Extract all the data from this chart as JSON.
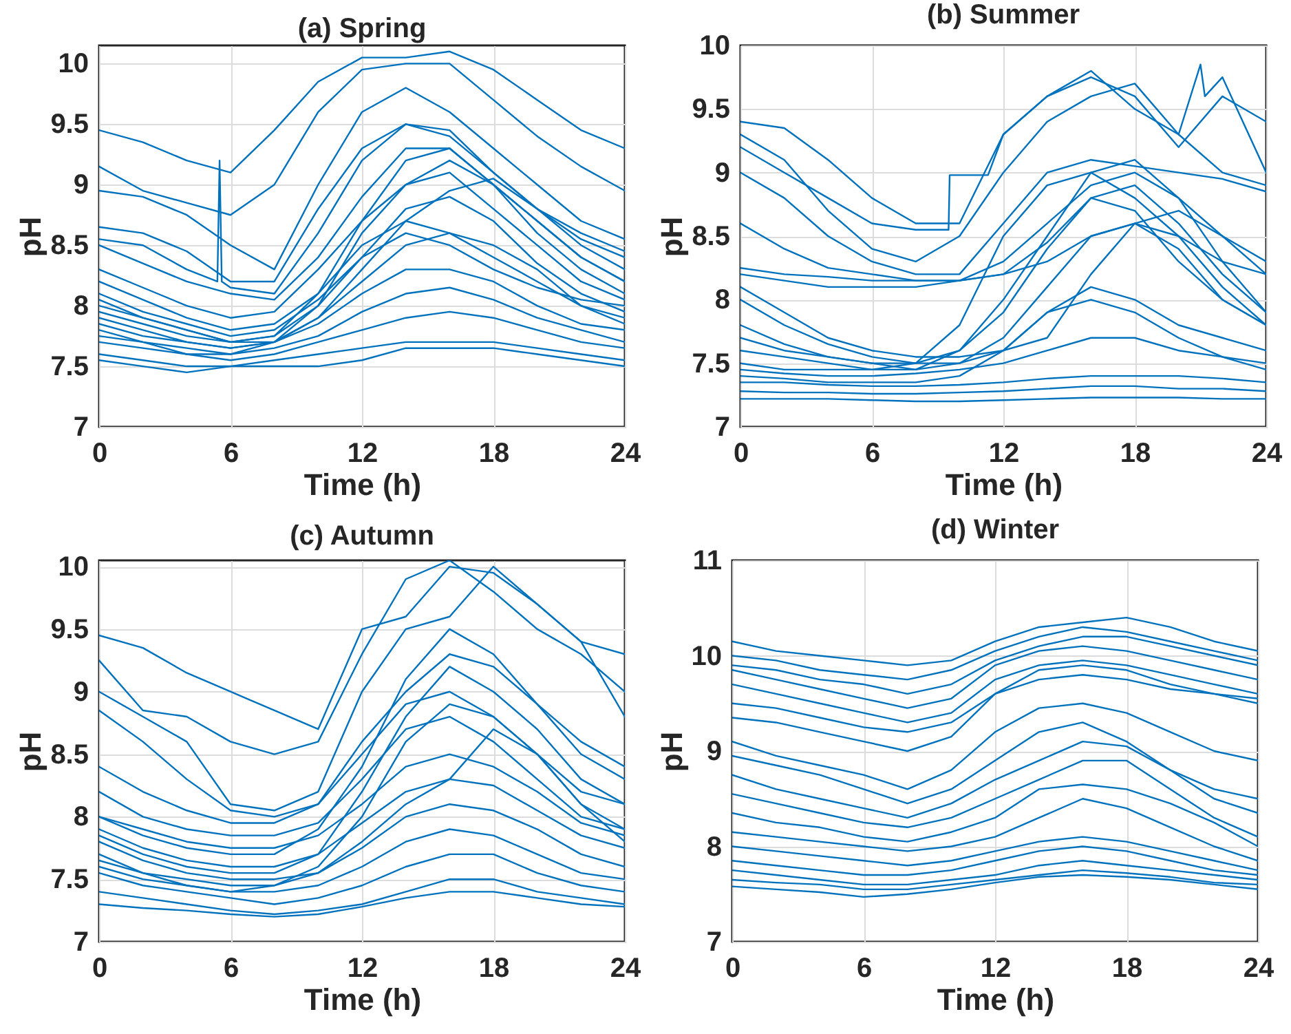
{
  "chart_data": [
    {
      "type": "line",
      "title": "(a) Spring",
      "xlabel": "Time (h)",
      "ylabel": "pH",
      "xlim": [
        0,
        24
      ],
      "xticks": [
        0,
        6,
        12,
        18,
        24
      ],
      "ylim": [
        7,
        10.15
      ],
      "yticks": [
        7,
        7.5,
        8,
        8.5,
        9,
        9.5,
        10
      ],
      "grid": true,
      "x": [
        0,
        2,
        4,
        6,
        8,
        10,
        12,
        14,
        16,
        18,
        20,
        22,
        24
      ],
      "series": [
        {
          "color": "#0072bd",
          "values": [
            9.45,
            9.35,
            9.2,
            9.1,
            9.45,
            9.85,
            10.05,
            10.05,
            10.1,
            9.95,
            9.7,
            9.45,
            9.3
          ]
        },
        {
          "color": "#0072bd",
          "values": [
            9.15,
            8.95,
            8.85,
            8.75,
            9.0,
            9.6,
            9.95,
            10.0,
            10.0,
            9.7,
            9.4,
            9.15,
            8.95
          ]
        },
        {
          "color": "#0072bd",
          "values": [
            8.95,
            8.9,
            8.75,
            8.5,
            8.3,
            9.0,
            9.6,
            9.8,
            9.6,
            9.3,
            9.0,
            8.7,
            8.55
          ]
        },
        {
          "color": "#0072bd",
          "values": [
            8.65,
            8.6,
            8.45,
            8.2,
            8.2,
            8.8,
            9.3,
            9.5,
            9.45,
            9.1,
            8.8,
            8.6,
            8.45
          ]
        },
        {
          "color": "#0072bd",
          "values": [
            8.5,
            8.35,
            8.2,
            8.1,
            8.05,
            8.4,
            8.9,
            9.3,
            9.3,
            9.0,
            8.7,
            8.4,
            8.2
          ]
        },
        {
          "color": "#0072bd",
          "values": [
            8.3,
            8.15,
            8.0,
            7.9,
            7.95,
            8.3,
            8.7,
            9.0,
            9.1,
            8.8,
            8.5,
            8.2,
            8.05
          ]
        },
        {
          "color": "#0072bd",
          "values": [
            8.2,
            8.05,
            7.9,
            7.8,
            7.85,
            8.1,
            8.5,
            8.7,
            8.6,
            8.4,
            8.2,
            8.0,
            7.9
          ]
        },
        {
          "color": "#0072bd",
          "values": [
            8.1,
            7.95,
            7.85,
            7.75,
            7.8,
            8.05,
            8.4,
            8.8,
            8.9,
            8.7,
            8.35,
            8.1,
            7.95
          ]
        },
        {
          "color": "#0072bd",
          "values": [
            8.0,
            7.9,
            7.8,
            7.7,
            7.7,
            7.9,
            8.2,
            8.5,
            8.6,
            8.5,
            8.3,
            8.0,
            7.85
          ]
        },
        {
          "color": "#0072bd",
          "values": [
            7.9,
            7.8,
            7.7,
            7.65,
            7.7,
            7.85,
            8.1,
            8.3,
            8.3,
            8.2,
            8.0,
            7.85,
            7.8
          ]
        },
        {
          "color": "#0072bd",
          "values": [
            7.8,
            7.7,
            7.65,
            7.6,
            7.65,
            7.75,
            7.95,
            8.1,
            8.15,
            8.05,
            7.9,
            7.8,
            7.7
          ]
        },
        {
          "color": "#0072bd",
          "values": [
            7.7,
            7.65,
            7.6,
            7.55,
            7.6,
            7.7,
            7.8,
            7.9,
            7.95,
            7.9,
            7.8,
            7.7,
            7.65
          ]
        },
        {
          "color": "#0072bd",
          "values": [
            7.6,
            7.55,
            7.5,
            7.5,
            7.55,
            7.6,
            7.65,
            7.7,
            7.7,
            7.7,
            7.65,
            7.6,
            7.55
          ]
        },
        {
          "color": "#0072bd",
          "values": [
            7.55,
            7.5,
            7.45,
            7.5,
            7.5,
            7.5,
            7.55,
            7.65,
            7.65,
            7.65,
            7.6,
            7.55,
            7.5
          ]
        },
        {
          "color": "#0072bd",
          "values": [
            7.95,
            7.85,
            7.75,
            7.7,
            7.75,
            8.1,
            8.7,
            9.2,
            9.3,
            9.0,
            8.6,
            8.3,
            8.1
          ]
        },
        {
          "color": "#0072bd",
          "values": [
            7.75,
            7.7,
            7.6,
            7.6,
            7.7,
            8.0,
            8.6,
            9.0,
            9.2,
            9.0,
            8.7,
            8.4,
            8.2
          ]
        },
        {
          "color": "#0072bd",
          "values": [
            7.85,
            7.75,
            7.7,
            7.65,
            7.7,
            7.9,
            8.3,
            8.7,
            8.95,
            9.05,
            8.8,
            8.5,
            8.3
          ]
        },
        {
          "color": "#0072bd",
          "values": [
            8.05,
            7.9,
            7.8,
            7.7,
            7.75,
            8.0,
            8.4,
            8.6,
            8.5,
            8.3,
            8.15,
            8.05,
            8.0
          ]
        },
        {
          "color": "#0072bd",
          "x": [
            0,
            2,
            4,
            5.4,
            5.5,
            5.6,
            6,
            8,
            10,
            12,
            14,
            16,
            18,
            20,
            22,
            24
          ],
          "values": [
            8.55,
            8.5,
            8.3,
            8.2,
            9.2,
            8.2,
            8.15,
            8.1,
            8.6,
            9.2,
            9.5,
            9.4,
            9.1,
            8.8,
            8.55,
            8.4
          ]
        }
      ]
    },
    {
      "type": "line",
      "title": "(b) Summer",
      "xlabel": "Time (h)",
      "ylabel": "pH",
      "xlim": [
        0,
        24
      ],
      "xticks": [
        0,
        6,
        12,
        18,
        24
      ],
      "ylim": [
        7,
        10
      ],
      "yticks": [
        7,
        7.5,
        8,
        8.5,
        9,
        9.5,
        10
      ],
      "grid": true,
      "x": [
        0,
        2,
        4,
        6,
        8,
        10,
        12,
        14,
        16,
        18,
        20,
        22,
        24
      ],
      "series": [
        {
          "color": "#0072bd",
          "values": [
            9.4,
            9.35,
            9.1,
            8.8,
            8.6,
            8.6,
            9.3,
            9.6,
            9.75,
            9.6,
            9.2,
            9.6,
            9.4
          ]
        },
        {
          "color": "#0072bd",
          "x": [
            0,
            2,
            4,
            6,
            8,
            9.5,
            9.55,
            11.3,
            12,
            14,
            16,
            18,
            20,
            21,
            21.2,
            22,
            24
          ],
          "values": [
            9.2,
            9.0,
            8.8,
            8.6,
            8.55,
            8.55,
            8.98,
            8.98,
            9.3,
            9.6,
            9.8,
            9.5,
            9.3,
            9.85,
            9.6,
            9.75,
            9.0
          ]
        },
        {
          "color": "#0072bd",
          "values": [
            9.3,
            9.1,
            8.7,
            8.4,
            8.3,
            8.5,
            9.0,
            9.4,
            9.6,
            9.7,
            9.3,
            9.0,
            8.9
          ]
        },
        {
          "color": "#0072bd",
          "values": [
            9.0,
            8.8,
            8.5,
            8.3,
            8.2,
            8.2,
            8.6,
            9.0,
            9.1,
            9.05,
            9.0,
            8.95,
            8.85
          ]
        },
        {
          "color": "#0072bd",
          "values": [
            8.6,
            8.4,
            8.25,
            8.2,
            8.15,
            8.15,
            8.3,
            8.6,
            8.9,
            9.0,
            8.8,
            8.5,
            8.3
          ]
        },
        {
          "color": "#0072bd",
          "values": [
            8.25,
            8.2,
            8.18,
            8.15,
            8.15,
            8.15,
            8.2,
            8.3,
            8.5,
            8.6,
            8.5,
            8.3,
            8.2
          ]
        },
        {
          "color": "#0072bd",
          "values": [
            8.2,
            8.15,
            8.1,
            8.1,
            8.1,
            8.15,
            8.2,
            8.45,
            8.8,
            8.9,
            8.6,
            8.2,
            7.9
          ]
        },
        {
          "color": "#0072bd",
          "values": [
            8.0,
            7.8,
            7.65,
            7.55,
            7.5,
            7.6,
            7.9,
            8.4,
            8.8,
            8.7,
            8.3,
            8.0,
            7.8
          ]
        },
        {
          "color": "#0072bd",
          "values": [
            7.8,
            7.65,
            7.55,
            7.5,
            7.45,
            7.5,
            7.7,
            8.1,
            8.5,
            8.6,
            8.4,
            8.0,
            7.8
          ]
        },
        {
          "color": "#0072bd",
          "values": [
            7.6,
            7.55,
            7.5,
            7.45,
            7.45,
            7.6,
            8.0,
            8.5,
            9.0,
            9.1,
            8.8,
            8.3,
            7.9
          ]
        },
        {
          "color": "#0072bd",
          "values": [
            7.5,
            7.45,
            7.45,
            7.45,
            7.5,
            7.5,
            7.6,
            7.9,
            8.1,
            8.0,
            7.8,
            7.7,
            7.6
          ]
        },
        {
          "color": "#0072bd",
          "values": [
            7.45,
            7.42,
            7.4,
            7.4,
            7.42,
            7.45,
            7.5,
            7.6,
            7.7,
            7.7,
            7.6,
            7.55,
            7.5
          ]
        },
        {
          "color": "#0072bd",
          "values": [
            7.35,
            7.35,
            7.33,
            7.32,
            7.32,
            7.33,
            7.35,
            7.38,
            7.4,
            7.4,
            7.4,
            7.38,
            7.35
          ]
        },
        {
          "color": "#0072bd",
          "values": [
            7.28,
            7.27,
            7.27,
            7.26,
            7.26,
            7.27,
            7.28,
            7.3,
            7.32,
            7.32,
            7.3,
            7.3,
            7.28
          ]
        },
        {
          "color": "#0072bd",
          "values": [
            7.22,
            7.22,
            7.22,
            7.21,
            7.2,
            7.2,
            7.21,
            7.22,
            7.23,
            7.23,
            7.23,
            7.22,
            7.22
          ]
        },
        {
          "color": "#0072bd",
          "values": [
            7.7,
            7.6,
            7.55,
            7.5,
            7.5,
            7.8,
            8.5,
            8.9,
            9.0,
            8.8,
            8.5,
            8.1,
            7.8
          ]
        },
        {
          "color": "#0072bd",
          "values": [
            8.1,
            7.9,
            7.7,
            7.6,
            7.55,
            7.55,
            7.6,
            7.7,
            8.2,
            8.6,
            8.7,
            8.5,
            8.2
          ]
        },
        {
          "color": "#0072bd",
          "values": [
            7.4,
            7.38,
            7.35,
            7.35,
            7.35,
            7.4,
            7.6,
            7.9,
            8.0,
            7.9,
            7.7,
            7.55,
            7.45
          ]
        }
      ]
    },
    {
      "type": "line",
      "title": "(c) Autumn",
      "xlabel": "Time (h)",
      "ylabel": "pH",
      "xlim": [
        0,
        24
      ],
      "xticks": [
        0,
        6,
        12,
        18,
        24
      ],
      "ylim": [
        7,
        10.05
      ],
      "yticks": [
        7,
        7.5,
        8,
        8.5,
        9,
        9.5,
        10
      ],
      "grid": true,
      "x": [
        0,
        2,
        4,
        6,
        8,
        10,
        12,
        14,
        16,
        18,
        20,
        22,
        24
      ],
      "series": [
        {
          "color": "#0072bd",
          "values": [
            9.45,
            9.35,
            9.15,
            9.0,
            8.85,
            8.7,
            9.5,
            9.6,
            10.0,
            9.95,
            9.7,
            9.4,
            9.3
          ]
        },
        {
          "color": "#0072bd",
          "values": [
            9.25,
            8.85,
            8.8,
            8.6,
            8.5,
            8.6,
            9.3,
            9.9,
            10.05,
            9.8,
            9.5,
            9.3,
            9.0
          ]
        },
        {
          "color": "#0072bd",
          "values": [
            9.0,
            8.8,
            8.6,
            8.1,
            8.05,
            8.2,
            9.0,
            9.5,
            9.6,
            10.0,
            9.7,
            9.4,
            8.8
          ]
        },
        {
          "color": "#0072bd",
          "values": [
            8.85,
            8.6,
            8.3,
            8.05,
            8.0,
            8.1,
            8.6,
            9.0,
            9.3,
            9.2,
            8.9,
            8.5,
            8.3
          ]
        },
        {
          "color": "#0072bd",
          "values": [
            8.4,
            8.2,
            8.05,
            7.95,
            7.95,
            8.1,
            8.5,
            8.9,
            9.0,
            8.8,
            8.5,
            8.2,
            8.1
          ]
        },
        {
          "color": "#0072bd",
          "values": [
            8.2,
            8.0,
            7.9,
            7.85,
            7.85,
            7.95,
            8.3,
            8.7,
            8.8,
            8.6,
            8.3,
            8.0,
            7.9
          ]
        },
        {
          "color": "#0072bd",
          "values": [
            8.0,
            7.9,
            7.8,
            7.75,
            7.75,
            7.85,
            8.1,
            8.4,
            8.5,
            8.4,
            8.2,
            7.95,
            7.85
          ]
        },
        {
          "color": "#0072bd",
          "values": [
            7.9,
            7.75,
            7.65,
            7.6,
            7.6,
            7.7,
            7.95,
            8.2,
            8.3,
            8.25,
            8.05,
            7.85,
            7.75
          ]
        },
        {
          "color": "#0072bd",
          "values": [
            7.8,
            7.65,
            7.55,
            7.5,
            7.5,
            7.55,
            7.75,
            8.0,
            8.1,
            8.05,
            7.9,
            7.7,
            7.6
          ]
        },
        {
          "color": "#0072bd",
          "values": [
            7.7,
            7.55,
            7.45,
            7.4,
            7.4,
            7.45,
            7.6,
            7.8,
            7.9,
            7.85,
            7.7,
            7.55,
            7.5
          ]
        },
        {
          "color": "#0072bd",
          "values": [
            7.55,
            7.45,
            7.4,
            7.35,
            7.3,
            7.35,
            7.45,
            7.6,
            7.7,
            7.7,
            7.55,
            7.45,
            7.4
          ]
        },
        {
          "color": "#0072bd",
          "values": [
            7.4,
            7.35,
            7.3,
            7.25,
            7.22,
            7.25,
            7.3,
            7.4,
            7.5,
            7.5,
            7.4,
            7.35,
            7.3
          ]
        },
        {
          "color": "#0072bd",
          "values": [
            7.3,
            7.27,
            7.25,
            7.22,
            7.2,
            7.22,
            7.28,
            7.35,
            7.4,
            7.4,
            7.35,
            7.3,
            7.28
          ]
        },
        {
          "color": "#0072bd",
          "values": [
            7.6,
            7.5,
            7.45,
            7.4,
            7.45,
            7.6,
            8.0,
            8.6,
            8.9,
            8.8,
            8.5,
            8.1,
            7.9
          ]
        },
        {
          "color": "#0072bd",
          "values": [
            7.85,
            7.7,
            7.6,
            7.55,
            7.55,
            7.7,
            8.2,
            8.8,
            9.2,
            9.0,
            8.7,
            8.3,
            8.1
          ]
        },
        {
          "color": "#0072bd",
          "values": [
            8.0,
            7.85,
            7.75,
            7.7,
            7.7,
            7.9,
            8.4,
            9.1,
            9.5,
            9.3,
            8.9,
            8.6,
            8.4
          ]
        },
        {
          "color": "#0072bd",
          "values": [
            7.65,
            7.55,
            7.5,
            7.45,
            7.45,
            7.55,
            7.8,
            8.1,
            8.3,
            8.7,
            8.5,
            8.1,
            7.8
          ]
        }
      ]
    },
    {
      "type": "line",
      "title": "(d) Winter",
      "xlabel": "Time (h)",
      "ylabel": "pH",
      "xlim": [
        0,
        24
      ],
      "xticks": [
        0,
        6,
        12,
        18,
        24
      ],
      "ylim": [
        7,
        11
      ],
      "yticks": [
        7,
        8,
        9,
        10,
        11
      ],
      "grid": true,
      "x": [
        0,
        2,
        4,
        6,
        8,
        10,
        12,
        14,
        16,
        18,
        20,
        22,
        24
      ],
      "series": [
        {
          "color": "#0072bd",
          "values": [
            10.15,
            10.05,
            10.0,
            9.95,
            9.9,
            9.95,
            10.15,
            10.3,
            10.35,
            10.4,
            10.3,
            10.15,
            10.05
          ]
        },
        {
          "color": "#0072bd",
          "values": [
            10.0,
            9.95,
            9.85,
            9.8,
            9.75,
            9.85,
            10.05,
            10.2,
            10.3,
            10.25,
            10.15,
            10.05,
            9.95
          ]
        },
        {
          "color": "#0072bd",
          "values": [
            9.85,
            9.75,
            9.65,
            9.55,
            9.45,
            9.55,
            9.9,
            10.05,
            10.1,
            10.05,
            9.95,
            9.85,
            9.75
          ]
        },
        {
          "color": "#0072bd",
          "values": [
            9.7,
            9.6,
            9.5,
            9.4,
            9.3,
            9.4,
            9.75,
            9.9,
            9.95,
            9.9,
            9.8,
            9.7,
            9.6
          ]
        },
        {
          "color": "#0072bd",
          "values": [
            9.5,
            9.45,
            9.35,
            9.25,
            9.2,
            9.3,
            9.6,
            9.75,
            9.8,
            9.75,
            9.65,
            9.6,
            9.55
          ]
        },
        {
          "color": "#0072bd",
          "values": [
            9.1,
            8.95,
            8.85,
            8.75,
            8.6,
            8.8,
            9.2,
            9.45,
            9.5,
            9.4,
            9.2,
            9.0,
            8.9
          ]
        },
        {
          "color": "#0072bd",
          "values": [
            8.95,
            8.85,
            8.75,
            8.6,
            8.45,
            8.6,
            8.9,
            9.2,
            9.3,
            9.1,
            8.8,
            8.6,
            8.5
          ]
        },
        {
          "color": "#0072bd",
          "values": [
            8.75,
            8.6,
            8.5,
            8.4,
            8.3,
            8.45,
            8.7,
            8.9,
            9.1,
            9.05,
            8.8,
            8.5,
            8.35
          ]
        },
        {
          "color": "#0072bd",
          "values": [
            8.55,
            8.45,
            8.35,
            8.25,
            8.2,
            8.3,
            8.5,
            8.7,
            8.9,
            8.9,
            8.6,
            8.3,
            8.1
          ]
        },
        {
          "color": "#0072bd",
          "values": [
            8.35,
            8.25,
            8.2,
            8.1,
            8.05,
            8.15,
            8.3,
            8.6,
            8.65,
            8.6,
            8.45,
            8.25,
            8.0
          ]
        },
        {
          "color": "#0072bd",
          "values": [
            8.15,
            8.1,
            8.05,
            8.0,
            7.95,
            8.0,
            8.1,
            8.3,
            8.5,
            8.4,
            8.2,
            8.0,
            7.85
          ]
        },
        {
          "color": "#0072bd",
          "values": [
            8.0,
            7.95,
            7.9,
            7.85,
            7.8,
            7.85,
            7.95,
            8.05,
            8.1,
            8.05,
            7.95,
            7.85,
            7.75
          ]
        },
        {
          "color": "#0072bd",
          "values": [
            7.85,
            7.8,
            7.75,
            7.7,
            7.7,
            7.75,
            7.85,
            7.95,
            8.0,
            7.95,
            7.85,
            7.75,
            7.7
          ]
        },
        {
          "color": "#0072bd",
          "values": [
            7.75,
            7.7,
            7.65,
            7.6,
            7.6,
            7.65,
            7.7,
            7.8,
            7.85,
            7.8,
            7.75,
            7.7,
            7.65
          ]
        },
        {
          "color": "#0072bd",
          "values": [
            7.65,
            7.62,
            7.6,
            7.55,
            7.55,
            7.6,
            7.65,
            7.7,
            7.75,
            7.72,
            7.68,
            7.62,
            7.6
          ]
        },
        {
          "color": "#0072bd",
          "values": [
            7.58,
            7.55,
            7.52,
            7.47,
            7.5,
            7.55,
            7.62,
            7.68,
            7.7,
            7.68,
            7.65,
            7.6,
            7.55
          ]
        },
        {
          "color": "#0072bd",
          "values": [
            9.35,
            9.3,
            9.2,
            9.1,
            9.0,
            9.15,
            9.6,
            9.85,
            9.9,
            9.85,
            9.7,
            9.6,
            9.5
          ]
        },
        {
          "color": "#0072bd",
          "values": [
            9.9,
            9.85,
            9.75,
            9.7,
            9.6,
            9.7,
            9.95,
            10.1,
            10.2,
            10.2,
            10.1,
            10.0,
            9.9
          ]
        }
      ]
    }
  ]
}
